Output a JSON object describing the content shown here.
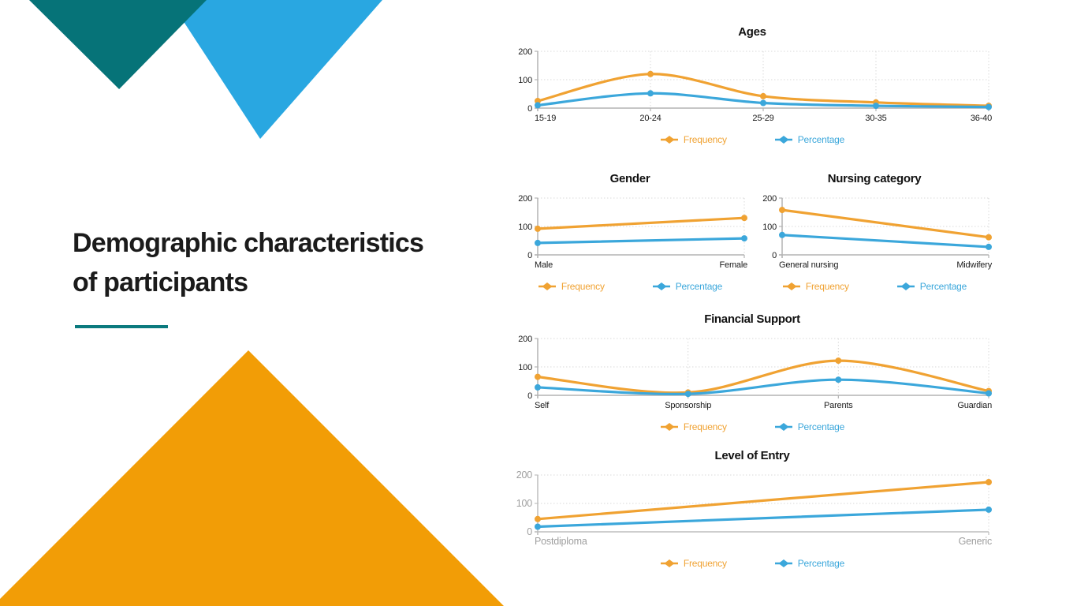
{
  "slide": {
    "title_line1": "Demographic characteristics",
    "title_line2": "of participants"
  },
  "colors": {
    "teal_triangle": "#067378",
    "blue_triangle": "#29A7E1",
    "orange_triangle": "#F29D06",
    "title_underline": "#0B7A7E",
    "frequency": "#F0A232",
    "percentage": "#3BA7DB",
    "axis": "#B3B3B3",
    "grid": "#D9D9D9",
    "tick_label_dark": "#1A1A1A",
    "tick_label_gray": "#9E9E9E"
  },
  "chart_data": [
    {
      "type": "line",
      "title": "Ages",
      "categories": [
        "15-19",
        "20-24",
        "25-29",
        "30-35",
        "36-40"
      ],
      "series": [
        {
          "name": "Frequency",
          "color": "#F0A232",
          "values": [
            25,
            120,
            42,
            20,
            8
          ]
        },
        {
          "name": "Percentage",
          "color": "#3BA7DB",
          "values": [
            10,
            52,
            18,
            8,
            4
          ]
        }
      ],
      "ylim": [
        0,
        200
      ],
      "yticks": [
        0,
        100,
        200
      ],
      "grid": "dotted",
      "smooth": true,
      "legend_position": "bottom",
      "label_style": "dark"
    },
    {
      "type": "line",
      "title": "Gender",
      "categories": [
        "Male",
        "Female"
      ],
      "series": [
        {
          "name": "Frequency",
          "color": "#F0A232",
          "values": [
            92,
            130
          ]
        },
        {
          "name": "Percentage",
          "color": "#3BA7DB",
          "values": [
            42,
            58
          ]
        }
      ],
      "ylim": [
        0,
        200
      ],
      "yticks": [
        0,
        100,
        200
      ],
      "grid": "dotted",
      "smooth": true,
      "legend_position": "bottom",
      "label_style": "dark"
    },
    {
      "type": "line",
      "title": "Nursing category",
      "categories": [
        "General nursing",
        "Midwifery"
      ],
      "series": [
        {
          "name": "Frequency",
          "color": "#F0A232",
          "values": [
            158,
            62
          ]
        },
        {
          "name": "Percentage",
          "color": "#3BA7DB",
          "values": [
            70,
            28
          ]
        }
      ],
      "ylim": [
        0,
        200
      ],
      "yticks": [
        0,
        100,
        200
      ],
      "grid": "dotted",
      "smooth": true,
      "legend_position": "bottom",
      "label_style": "dark"
    },
    {
      "type": "line",
      "title": "Financial Support",
      "categories": [
        "Self",
        "Sponsorship",
        "Parents",
        "Guardian"
      ],
      "series": [
        {
          "name": "Frequency",
          "color": "#F0A232",
          "values": [
            65,
            10,
            122,
            15
          ]
        },
        {
          "name": "Percentage",
          "color": "#3BA7DB",
          "values": [
            28,
            5,
            55,
            7
          ]
        }
      ],
      "ylim": [
        0,
        200
      ],
      "yticks": [
        0,
        100,
        200
      ],
      "grid": "dotted",
      "smooth": true,
      "legend_position": "bottom",
      "label_style": "dark"
    },
    {
      "type": "line",
      "title": "Level of Entry",
      "categories": [
        "Postdiploma",
        "Generic"
      ],
      "series": [
        {
          "name": "Frequency",
          "color": "#F0A232",
          "values": [
            45,
            175
          ]
        },
        {
          "name": "Percentage",
          "color": "#3BA7DB",
          "values": [
            18,
            78
          ]
        }
      ],
      "ylim": [
        0,
        200
      ],
      "yticks": [
        0,
        100,
        200
      ],
      "grid": "dotted",
      "smooth": true,
      "legend_position": "bottom",
      "label_style": "gray"
    }
  ]
}
